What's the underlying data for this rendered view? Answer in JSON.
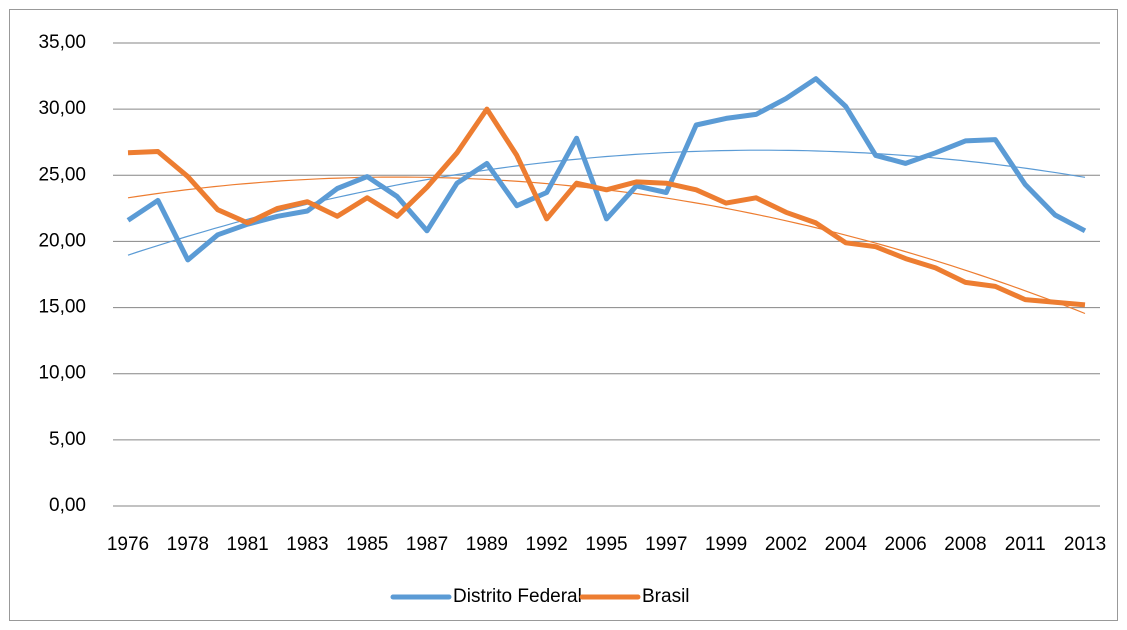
{
  "chart_data": {
    "type": "line",
    "categories": [
      "1976",
      null,
      "1978",
      null,
      "1981",
      null,
      "1983",
      null,
      "1985",
      null,
      "1987",
      null,
      "1989",
      null,
      "1992",
      null,
      "1995",
      null,
      "1997",
      null,
      "1999",
      null,
      "2002",
      null,
      "2004",
      null,
      "2006",
      null,
      "2008",
      null,
      "2011",
      null,
      "2013"
    ],
    "series": [
      {
        "name": "Distrito Federal",
        "color": "#5b9bd5",
        "values": [
          21.6,
          23.1,
          18.6,
          20.5,
          21.3,
          21.9,
          22.3,
          24.0,
          24.9,
          23.4,
          20.8,
          24.4,
          25.9,
          22.7,
          23.7,
          27.8,
          21.7,
          24.2,
          23.7,
          28.8,
          29.3,
          29.6,
          30.8,
          32.3,
          30.2,
          26.5,
          25.9,
          26.7,
          27.6,
          27.7,
          24.3,
          22.0,
          20.8
        ]
      },
      {
        "name": "Brasil",
        "color": "#ed7d31",
        "values": [
          26.7,
          26.8,
          24.9,
          22.4,
          21.4,
          22.5,
          23.0,
          21.9,
          23.3,
          21.9,
          24.1,
          26.7,
          30.0,
          26.5,
          21.7,
          24.4,
          23.9,
          24.5,
          24.4,
          23.9,
          22.9,
          23.3,
          22.2,
          21.4,
          19.9,
          19.6,
          18.7,
          18.0,
          16.9,
          16.6,
          15.6,
          15.4,
          15.2
        ]
      }
    ],
    "ylim": [
      0,
      35
    ],
    "yticks": [
      {
        "value": 0,
        "label": "0,00"
      },
      {
        "value": 5,
        "label": "5,00"
      },
      {
        "value": 10,
        "label": "10,00"
      },
      {
        "value": 15,
        "label": "15,00"
      },
      {
        "value": 20,
        "label": "20,00"
      },
      {
        "value": 25,
        "label": "25,00"
      },
      {
        "value": 30,
        "label": "30,00"
      },
      {
        "value": 35,
        "label": "35,00"
      }
    ],
    "grid": true,
    "trendline": true,
    "legend": "bottom"
  }
}
